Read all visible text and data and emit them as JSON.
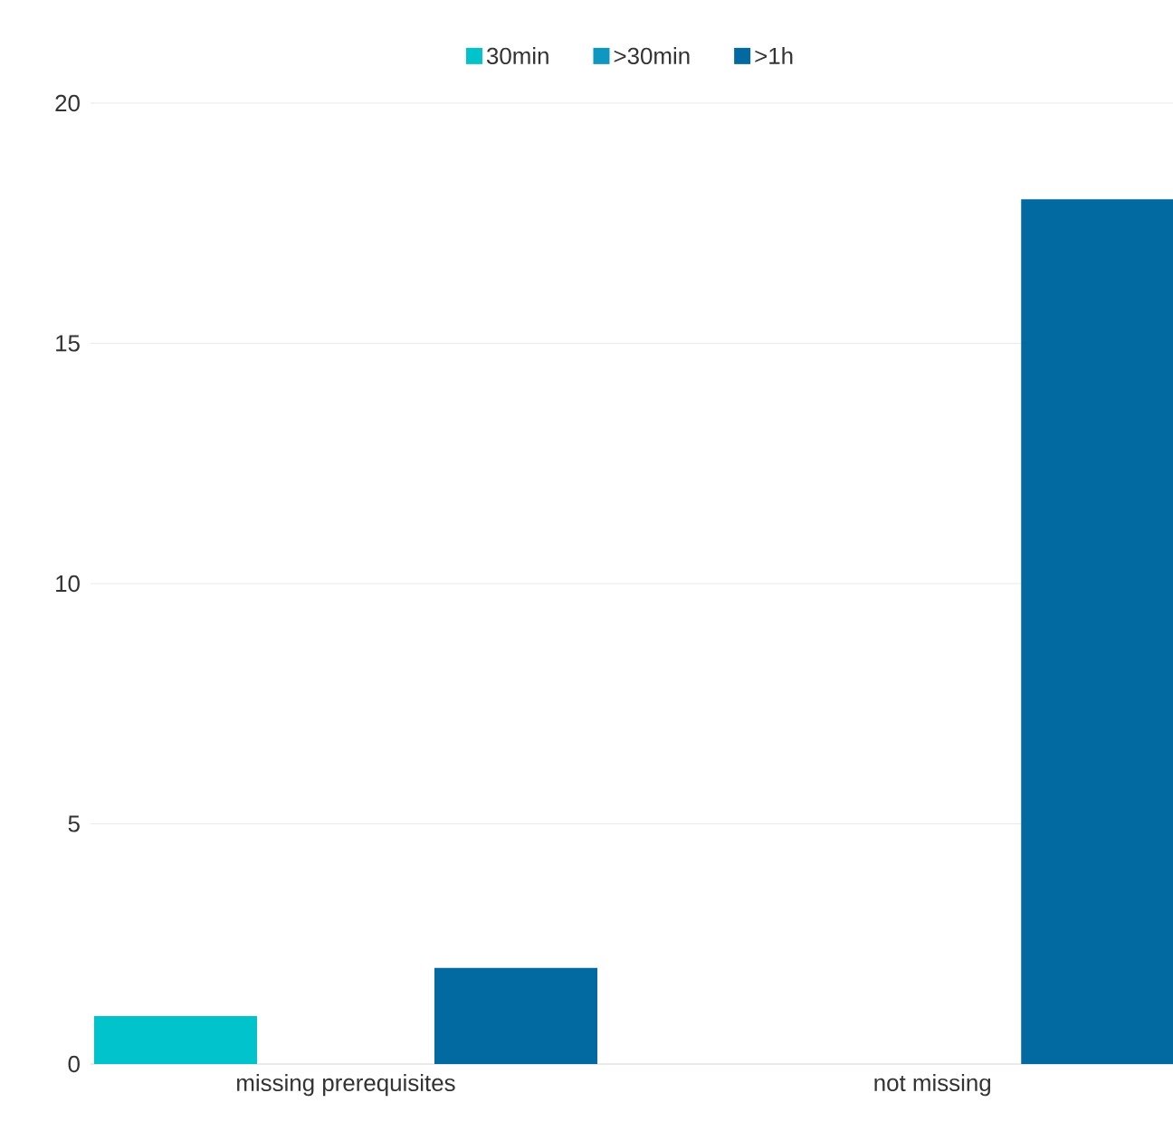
{
  "chart_data": {
    "type": "bar",
    "categories": [
      "missing prerequisites",
      "not missing"
    ],
    "series": [
      {
        "name": "30min",
        "color": "#00c3cc",
        "values": [
          1,
          0
        ]
      },
      {
        "name": ">30min",
        "color": "#0e97c0",
        "values": [
          0,
          0
        ]
      },
      {
        "name": ">1h",
        "color": "#0369a1",
        "values": [
          2,
          18
        ]
      }
    ],
    "ylim": [
      0,
      20
    ],
    "yticks": [
      0,
      5,
      10,
      15,
      20
    ],
    "grid": "y",
    "legend": "top"
  }
}
